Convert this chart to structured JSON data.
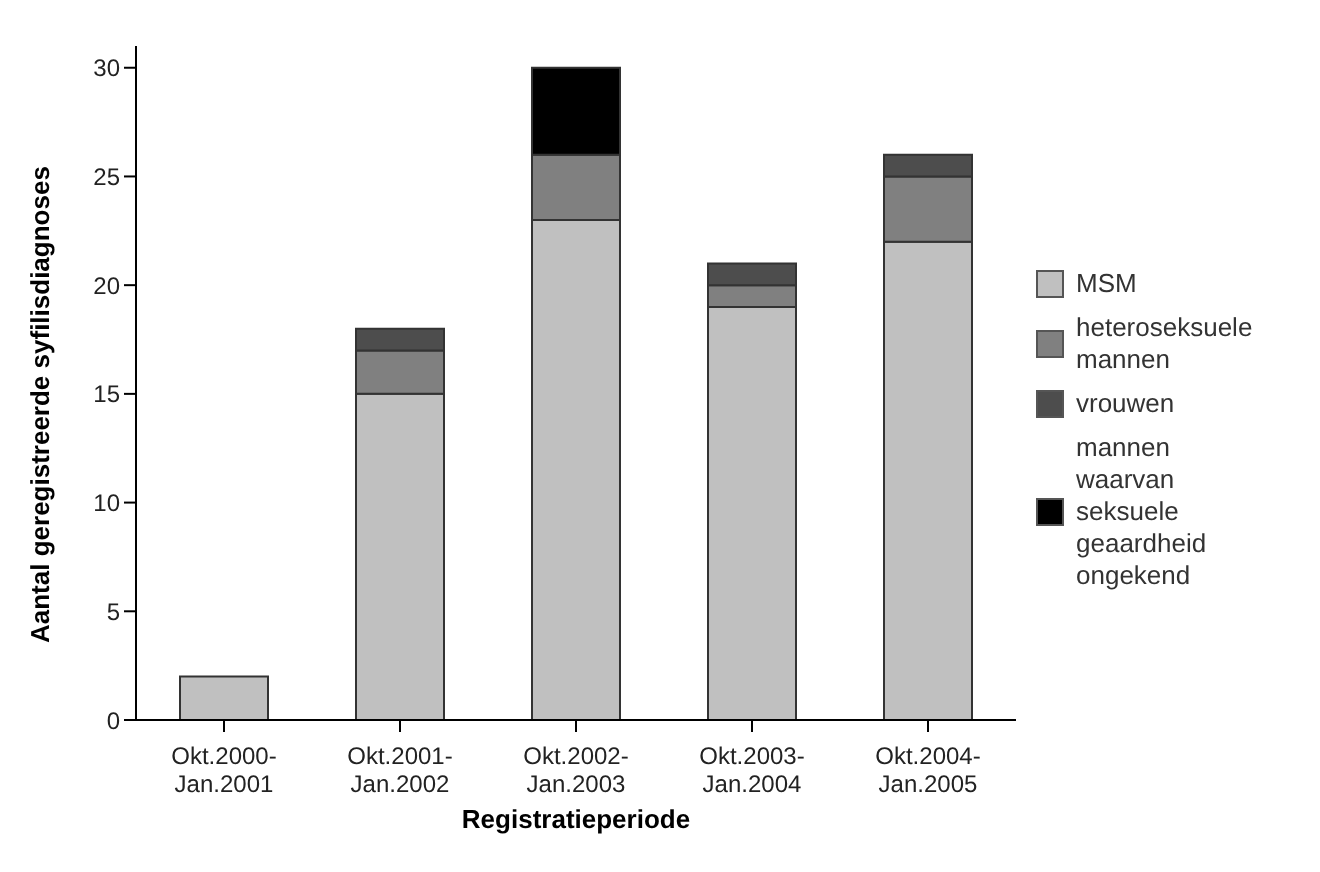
{
  "chart_data": {
    "type": "bar",
    "stacked": true,
    "xlabel": "Registratieperiode",
    "ylabel": "Aantal geregistreerde syfilisdiagnoses",
    "categories": [
      "Okt.2000-Jan.2001",
      "Okt.2001-Jan.2002",
      "Okt.2002-Jan.2003",
      "Okt.2003-Jan.2004",
      "Okt.2004-Jan.2005"
    ],
    "series": [
      {
        "name": "MSM",
        "color": "#c0c0c0",
        "values": [
          2,
          15,
          23,
          19,
          22
        ]
      },
      {
        "name": "heteroseksuele mannen",
        "color": "#808080",
        "values": [
          0,
          2,
          3,
          1,
          3
        ]
      },
      {
        "name": "vrouwen",
        "color": "#4d4d4d",
        "values": [
          0,
          1,
          0,
          1,
          1
        ]
      },
      {
        "name": "mannen waarvan seksuele geaardheid ongekend",
        "color": "#000000",
        "values": [
          0,
          0,
          4,
          0,
          0
        ]
      }
    ],
    "ylim": [
      0,
      31
    ],
    "yticks": [
      0,
      5,
      10,
      15,
      20,
      25,
      30
    ],
    "grid": false,
    "legend": "right"
  }
}
